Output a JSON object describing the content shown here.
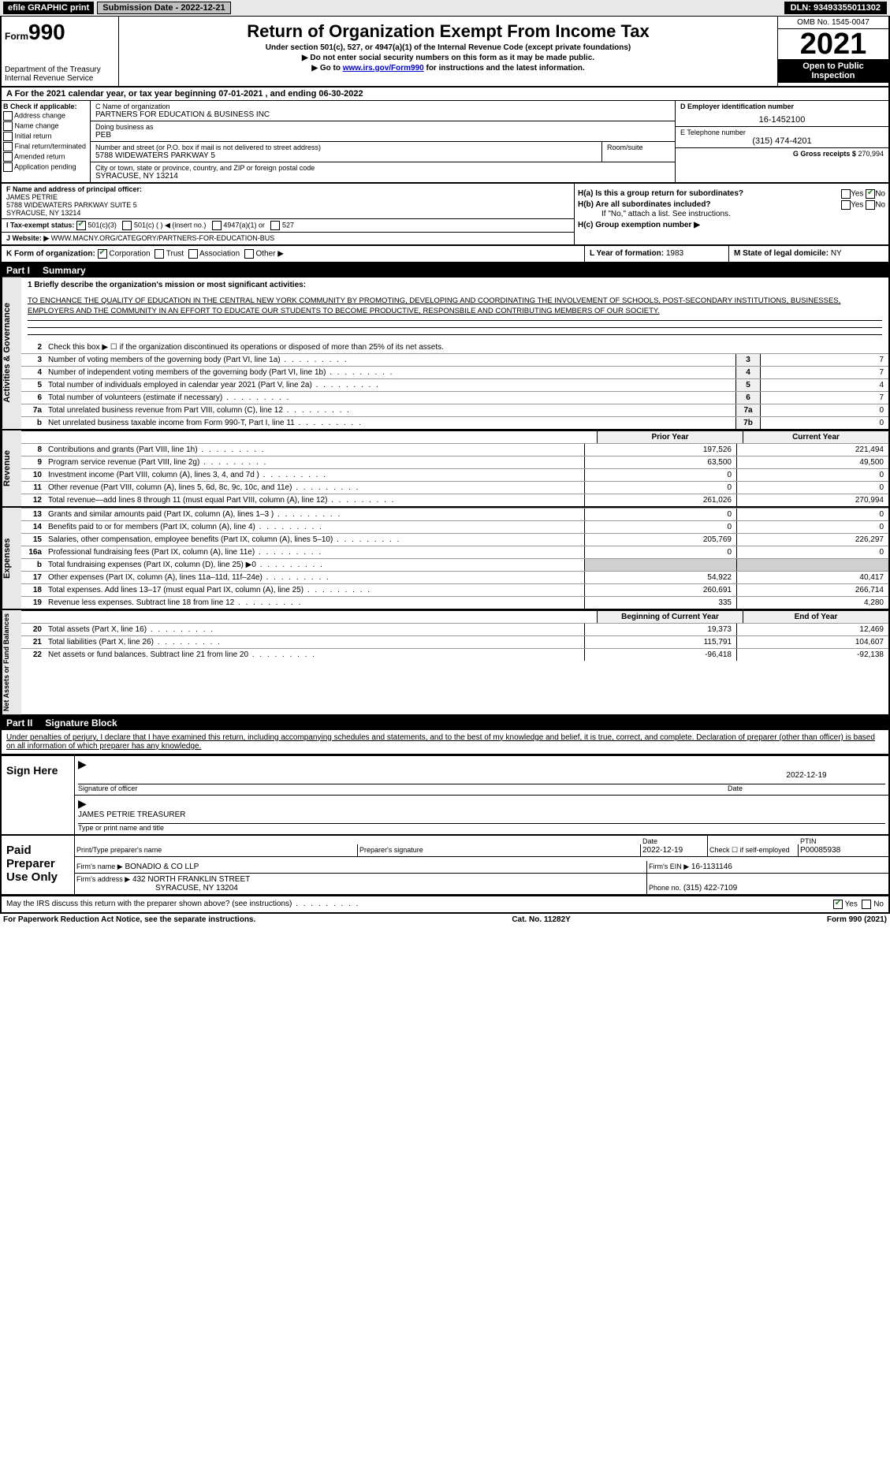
{
  "topbar": {
    "efile": "efile GRAPHIC print",
    "submission_label": "Submission Date - 2022-12-21",
    "dln": "DLN: 93493355011302"
  },
  "header": {
    "form_small": "Form",
    "form_num": "990",
    "dept": "Department of the Treasury",
    "irs": "Internal Revenue Service",
    "title": "Return of Organization Exempt From Income Tax",
    "sub1": "Under section 501(c), 527, or 4947(a)(1) of the Internal Revenue Code (except private foundations)",
    "sub2": "▶ Do not enter social security numbers on this form as it may be made public.",
    "sub3_pre": "▶ Go to ",
    "sub3_link": "www.irs.gov/Form990",
    "sub3_post": " for instructions and the latest information.",
    "omb": "OMB No. 1545-0047",
    "year": "2021",
    "open": "Open to Public Inspection"
  },
  "period": {
    "line": "A For the 2021 calendar year, or tax year beginning 07-01-2021     , and ending 06-30-2022"
  },
  "boxB": {
    "label": "B Check if applicable:",
    "items": [
      "Address change",
      "Name change",
      "Initial return",
      "Final return/terminated",
      "Amended return",
      "Application pending"
    ]
  },
  "boxC": {
    "name_label": "C Name of organization",
    "name": "PARTNERS FOR EDUCATION & BUSINESS INC",
    "dba_label": "Doing business as",
    "dba": "PEB",
    "addr_label": "Number and street (or P.O. box if mail is not delivered to street address)",
    "room_label": "Room/suite",
    "addr": "5788 WIDEWATERS PARKWAY 5",
    "city_label": "City or town, state or province, country, and ZIP or foreign postal code",
    "city": "SYRACUSE, NY  13214"
  },
  "boxD": {
    "label": "D Employer identification number",
    "ein": "16-1452100",
    "tel_label": "E Telephone number",
    "tel": "(315) 474-4201",
    "gross_label": "G Gross receipts $",
    "gross": "270,994"
  },
  "boxF": {
    "label": "F  Name and address of principal officer:",
    "name": "JAMES PETRIE",
    "addr": "5788 WIDEWATERS PARKWAY SUITE 5",
    "city": "SYRACUSE, NY  13214"
  },
  "boxH": {
    "a_label": "H(a)  Is this a group return for subordinates?",
    "b_label": "H(b)  Are all subordinates included?",
    "b_note": "If \"No,\" attach a list. See instructions.",
    "c_label": "H(c)  Group exemption number ▶"
  },
  "boxI": {
    "label": "I    Tax-exempt status:",
    "opts": [
      "501(c)(3)",
      "501(c) (  ) ◀ (insert no.)",
      "4947(a)(1) or",
      "527"
    ]
  },
  "boxJ": {
    "label": "J   Website: ▶",
    "url": " WWW.MACNY.ORG/CATEGORY/PARTNERS-FOR-EDUCATION-BUS"
  },
  "boxK": {
    "label": "K Form of organization:",
    "opts": [
      "Corporation",
      "Trust",
      "Association",
      "Other ▶"
    ]
  },
  "boxL": {
    "label": "L Year of formation:",
    "val": "1983"
  },
  "boxM": {
    "label": "M State of legal domicile:",
    "val": "NY"
  },
  "part1": {
    "title_num": "Part I",
    "title": "Summary",
    "mission_label": "1  Briefly describe the organization's mission or most significant activities:",
    "mission": "TO ENCHANCE THE QUALITY OF EDUCATION IN THE CENTRAL NEW YORK COMMUNITY BY PROMOTING, DEVELOPING AND COORDINATING THE INVOLVEMENT OF SCHOOLS, POST-SECONDARY INSTITUTIONS, BUSINESSES, EMPLOYERS AND THE COMMUNITY IN AN EFFORT TO EDUCATE OUR STUDENTS TO BECOME PRODUCTIVE, RESPONSBILE AND CONTRIBUTING MEMBERS OF OUR SOCIETY.",
    "line2": "Check this box ▶ ☐  if the organization discontinued its operations or disposed of more than 25% of its net assets.",
    "gov_rows": [
      {
        "n": "3",
        "d": "Number of voting members of the governing body (Part VI, line 1a)",
        "box": "3",
        "v": "7"
      },
      {
        "n": "4",
        "d": "Number of independent voting members of the governing body (Part VI, line 1b)",
        "box": "4",
        "v": "7"
      },
      {
        "n": "5",
        "d": "Total number of individuals employed in calendar year 2021 (Part V, line 2a)",
        "box": "5",
        "v": "4"
      },
      {
        "n": "6",
        "d": "Total number of volunteers (estimate if necessary)",
        "box": "6",
        "v": "7"
      },
      {
        "n": "7a",
        "d": "Total unrelated business revenue from Part VIII, column (C), line 12",
        "box": "7a",
        "v": "0"
      },
      {
        "n": "b",
        "d": "Net unrelated business taxable income from Form 990-T, Part I, line 11",
        "box": "7b",
        "v": "0"
      }
    ],
    "col_prior": "Prior Year",
    "col_current": "Current Year",
    "rev_rows": [
      {
        "n": "8",
        "d": "Contributions and grants (Part VIII, line 1h)",
        "p": "197,526",
        "c": "221,494"
      },
      {
        "n": "9",
        "d": "Program service revenue (Part VIII, line 2g)",
        "p": "63,500",
        "c": "49,500"
      },
      {
        "n": "10",
        "d": "Investment income (Part VIII, column (A), lines 3, 4, and 7d )",
        "p": "0",
        "c": "0"
      },
      {
        "n": "11",
        "d": "Other revenue (Part VIII, column (A), lines 5, 6d, 8c, 9c, 10c, and 11e)",
        "p": "0",
        "c": "0"
      },
      {
        "n": "12",
        "d": "Total revenue—add lines 8 through 11 (must equal Part VIII, column (A), line 12)",
        "p": "261,026",
        "c": "270,994"
      }
    ],
    "exp_rows": [
      {
        "n": "13",
        "d": "Grants and similar amounts paid (Part IX, column (A), lines 1–3 )",
        "p": "0",
        "c": "0"
      },
      {
        "n": "14",
        "d": "Benefits paid to or for members (Part IX, column (A), line 4)",
        "p": "0",
        "c": "0"
      },
      {
        "n": "15",
        "d": "Salaries, other compensation, employee benefits (Part IX, column (A), lines 5–10)",
        "p": "205,769",
        "c": "226,297"
      },
      {
        "n": "16a",
        "d": "Professional fundraising fees (Part IX, column (A), line 11e)",
        "p": "0",
        "c": "0"
      },
      {
        "n": "b",
        "d": "Total fundraising expenses (Part IX, column (D), line 25) ▶0",
        "p": "",
        "c": "",
        "shade": true
      },
      {
        "n": "17",
        "d": "Other expenses (Part IX, column (A), lines 11a–11d, 11f–24e)",
        "p": "54,922",
        "c": "40,417"
      },
      {
        "n": "18",
        "d": "Total expenses. Add lines 13–17 (must equal Part IX, column (A), line 25)",
        "p": "260,691",
        "c": "266,714"
      },
      {
        "n": "19",
        "d": "Revenue less expenses. Subtract line 18 from line 12",
        "p": "335",
        "c": "4,280"
      }
    ],
    "col_begin": "Beginning of Current Year",
    "col_end": "End of Year",
    "net_rows": [
      {
        "n": "20",
        "d": "Total assets (Part X, line 16)",
        "p": "19,373",
        "c": "12,469"
      },
      {
        "n": "21",
        "d": "Total liabilities (Part X, line 26)",
        "p": "115,791",
        "c": "104,607"
      },
      {
        "n": "22",
        "d": "Net assets or fund balances. Subtract line 21 from line 20",
        "p": "-96,418",
        "c": "-92,138"
      }
    ],
    "side_labels": {
      "gov": "Activities & Governance",
      "rev": "Revenue",
      "exp": "Expenses",
      "net": "Net Assets or Fund Balances"
    }
  },
  "part2": {
    "title_num": "Part II",
    "title": "Signature Block",
    "perjury": "Under penalties of perjury, I declare that I have examined this return, including accompanying schedules and statements, and to the best of my knowledge and belief, it is true, correct, and complete. Declaration of preparer (other than officer) is based on all information of which preparer has any knowledge.",
    "sign_here": "Sign Here",
    "sig_officer": "Signature of officer",
    "sig_date": "2022-12-19",
    "sig_date_lbl": "Date",
    "officer_name": "JAMES PETRIE  TREASURER",
    "officer_lbl": "Type or print name and title",
    "paid": "Paid Preparer Use Only",
    "prep_name_lbl": "Print/Type preparer's name",
    "prep_sig_lbl": "Preparer's signature",
    "prep_date_lbl": "Date",
    "prep_date": "2022-12-19",
    "self_emp": "Check ☐ if self-employed",
    "ptin_lbl": "PTIN",
    "ptin": "P00085938",
    "firm_name_lbl": "Firm's name     ▶",
    "firm_name": "BONADIO & CO LLP",
    "firm_ein_lbl": "Firm's EIN ▶",
    "firm_ein": "16-1131146",
    "firm_addr_lbl": "Firm's address ▶",
    "firm_addr1": "432 NORTH FRANKLIN STREET",
    "firm_addr2": "SYRACUSE, NY  13204",
    "phone_lbl": "Phone no.",
    "phone": "(315) 422-7109",
    "discuss": "May the IRS discuss this return with the preparer shown above? (see instructions)",
    "yes": "Yes",
    "no": "No"
  },
  "footer": {
    "left": "For Paperwork Reduction Act Notice, see the separate instructions.",
    "mid": "Cat. No. 11282Y",
    "right": "Form 990 (2021)"
  }
}
